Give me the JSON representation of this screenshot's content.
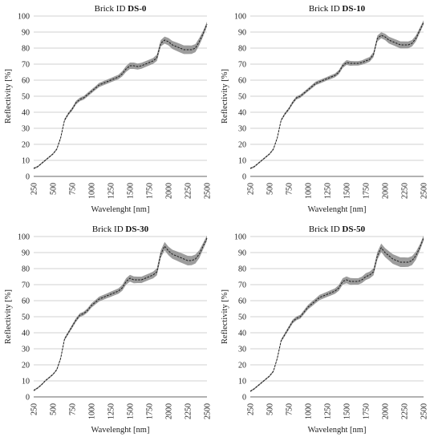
{
  "chart_data": [
    {
      "type": "line",
      "title": "Brick ID DS-0",
      "title_prefix": "Brick ID ",
      "title_id": "DS-0",
      "xlabel": "Wavelenght [nm]",
      "ylabel": "Reflectivity [%]",
      "xlim": [
        250,
        2500
      ],
      "ylim": [
        0,
        100
      ],
      "xticks": [
        "250",
        "500",
        "750",
        "1000",
        "1250",
        "1500",
        "1750",
        "2000",
        "2250",
        "2500"
      ],
      "yticks": [
        "0",
        "10",
        "20",
        "30",
        "40",
        "50",
        "60",
        "70",
        "80",
        "90",
        "100"
      ],
      "grid": "horizontal",
      "colors": {
        "line": "#1a1a1a",
        "band": "#8c8c8c"
      },
      "x": [
        250,
        300,
        350,
        400,
        450,
        500,
        550,
        600,
        650,
        700,
        750,
        800,
        850,
        900,
        950,
        1000,
        1050,
        1100,
        1150,
        1200,
        1250,
        1300,
        1350,
        1400,
        1450,
        1500,
        1550,
        1600,
        1650,
        1700,
        1750,
        1800,
        1850,
        1900,
        1950,
        2000,
        2050,
        2100,
        2150,
        2200,
        2250,
        2300,
        2350,
        2400,
        2450,
        2500
      ],
      "series": [
        {
          "values": [
            5,
            6,
            8,
            10,
            12,
            14,
            17,
            24,
            35,
            39,
            42,
            46,
            48,
            49,
            51,
            53,
            55,
            57,
            58,
            59,
            60,
            61,
            62,
            64,
            67,
            69,
            69,
            68.5,
            69,
            70,
            71,
            72,
            74,
            83,
            85,
            84,
            82,
            81,
            80,
            79,
            79,
            79,
            80,
            84,
            89,
            95
          ]
        }
      ],
      "band_halfwidth": [
        0.5,
        0.5,
        0.5,
        0.5,
        0.5,
        0.5,
        0.6,
        0.8,
        0.8,
        0.9,
        1.0,
        1.1,
        1.1,
        1.1,
        1.2,
        1.2,
        1.2,
        1.3,
        1.3,
        1.3,
        1.3,
        1.4,
        1.4,
        1.6,
        1.8,
        2.0,
        2.0,
        1.9,
        1.9,
        1.8,
        1.8,
        1.8,
        2.0,
        2.0,
        2.2,
        2.3,
        2.5,
        2.6,
        2.7,
        2.7,
        2.7,
        2.6,
        2.5,
        2.3,
        1.8,
        1.5
      ]
    },
    {
      "type": "line",
      "title": "Brick ID DS-10",
      "title_prefix": "Brick ID ",
      "title_id": "DS-10",
      "xlabel": "Wavelenght [nm]",
      "ylabel": "Reflectivity [%]",
      "xlim": [
        250,
        2500
      ],
      "ylim": [
        0,
        100
      ],
      "xticks": [
        "250",
        "500",
        "750",
        "1000",
        "1250",
        "1500",
        "1750",
        "2000",
        "2250",
        "2500"
      ],
      "yticks": [
        "0",
        "10",
        "20",
        "30",
        "40",
        "50",
        "60",
        "70",
        "80",
        "90",
        "100"
      ],
      "grid": "horizontal",
      "colors": {
        "line": "#1a1a1a",
        "band": "#8c8c8c"
      },
      "x": [
        250,
        300,
        350,
        400,
        450,
        500,
        550,
        600,
        650,
        700,
        750,
        800,
        850,
        900,
        950,
        1000,
        1050,
        1100,
        1150,
        1200,
        1250,
        1300,
        1350,
        1400,
        1450,
        1500,
        1550,
        1600,
        1650,
        1700,
        1750,
        1800,
        1850,
        1900,
        1950,
        2000,
        2050,
        2100,
        2150,
        2200,
        2250,
        2300,
        2350,
        2400,
        2450,
        2500
      ],
      "series": [
        {
          "values": [
            5,
            6,
            8,
            10,
            12,
            14,
            17,
            24,
            35,
            39,
            42,
            46,
            49,
            50,
            52,
            54,
            56,
            58,
            59,
            60,
            61,
            62,
            63,
            65,
            69,
            71,
            70.5,
            70.5,
            70.5,
            71,
            72,
            73,
            76,
            86,
            88,
            87,
            85,
            84,
            83,
            82,
            82,
            82,
            83,
            86,
            91,
            96
          ]
        }
      ],
      "band_halfwidth": [
        0.5,
        0.5,
        0.5,
        0.5,
        0.5,
        0.5,
        0.6,
        0.7,
        0.7,
        0.8,
        0.9,
        1.0,
        1.0,
        1.0,
        1.0,
        1.0,
        1.1,
        1.1,
        1.1,
        1.1,
        1.1,
        1.2,
        1.2,
        1.3,
        1.4,
        1.5,
        1.5,
        1.4,
        1.4,
        1.4,
        1.5,
        1.5,
        1.6,
        1.8,
        1.9,
        2.0,
        2.1,
        2.1,
        2.2,
        2.2,
        2.2,
        2.1,
        2.0,
        1.9,
        1.6,
        1.4
      ]
    },
    {
      "type": "line",
      "title": "Brick ID DS-30",
      "title_prefix": "Brick ID ",
      "title_id": "DS-30",
      "xlabel": "Wavelenght [nm]",
      "ylabel": "Reflectivity [%]",
      "xlim": [
        250,
        2500
      ],
      "ylim": [
        0,
        100
      ],
      "xticks": [
        "250",
        "500",
        "750",
        "1000",
        "1250",
        "1500",
        "1750",
        "2000",
        "2250",
        "2500"
      ],
      "yticks": [
        "0",
        "10",
        "20",
        "30",
        "40",
        "50",
        "60",
        "70",
        "80",
        "90",
        "100"
      ],
      "grid": "horizontal",
      "colors": {
        "line": "#1a1a1a",
        "band": "#8c8c8c"
      },
      "x": [
        250,
        300,
        350,
        400,
        450,
        500,
        550,
        600,
        650,
        700,
        750,
        800,
        850,
        900,
        950,
        1000,
        1050,
        1100,
        1150,
        1200,
        1250,
        1300,
        1350,
        1400,
        1450,
        1500,
        1550,
        1600,
        1650,
        1700,
        1750,
        1800,
        1850,
        1900,
        1950,
        2000,
        2050,
        2100,
        2150,
        2200,
        2250,
        2300,
        2350,
        2400,
        2450,
        2500
      ],
      "series": [
        {
          "values": [
            4,
            5.5,
            7.5,
            10,
            12,
            14,
            17,
            24,
            36,
            40,
            44,
            48,
            51,
            52,
            54,
            57,
            59,
            61,
            62,
            63,
            64,
            65,
            66,
            68,
            72,
            74,
            73,
            73,
            73,
            74,
            75,
            76,
            78,
            89,
            94,
            91,
            89,
            88,
            87,
            86,
            85,
            85,
            86,
            89,
            94,
            99
          ]
        }
      ],
      "band_halfwidth": [
        0.5,
        0.5,
        0.5,
        0.5,
        0.5,
        0.5,
        0.6,
        0.8,
        0.9,
        1.0,
        1.1,
        1.2,
        1.2,
        1.2,
        1.3,
        1.4,
        1.4,
        1.5,
        1.5,
        1.5,
        1.6,
        1.6,
        1.7,
        1.8,
        2.0,
        2.1,
        2.1,
        2.0,
        2.0,
        2.0,
        2.0,
        2.1,
        2.2,
        2.4,
        2.6,
        2.7,
        2.8,
        2.9,
        3.0,
        3.0,
        3.0,
        2.9,
        2.8,
        2.5,
        2.0,
        1.6
      ]
    },
    {
      "type": "line",
      "title": "Brick ID DS-50",
      "title_prefix": "Brick ID ",
      "title_id": "DS-50",
      "xlabel": "Wavelenght [nm]",
      "ylabel": "Reflectivity [%]",
      "xlim": [
        250,
        2500
      ],
      "ylim": [
        0,
        100
      ],
      "xticks": [
        "250",
        "500",
        "750",
        "1000",
        "1250",
        "1500",
        "1750",
        "2000",
        "2250",
        "2500"
      ],
      "yticks": [
        "0",
        "10",
        "20",
        "30",
        "40",
        "50",
        "60",
        "70",
        "80",
        "90",
        "100"
      ],
      "grid": "horizontal",
      "colors": {
        "line": "#1a1a1a",
        "band": "#8c8c8c"
      },
      "x": [
        250,
        300,
        350,
        400,
        450,
        500,
        550,
        600,
        650,
        700,
        750,
        800,
        850,
        900,
        950,
        1000,
        1050,
        1100,
        1150,
        1200,
        1250,
        1300,
        1350,
        1400,
        1450,
        1500,
        1550,
        1600,
        1650,
        1700,
        1750,
        1800,
        1850,
        1900,
        1950,
        2000,
        2050,
        2100,
        2150,
        2200,
        2250,
        2300,
        2350,
        2400,
        2450,
        2500
      ],
      "series": [
        {
          "values": [
            3.5,
            5,
            7,
            9,
            11,
            13,
            16,
            24,
            35,
            39,
            43,
            47,
            49,
            50,
            53,
            56,
            58,
            60,
            62,
            63,
            64,
            65,
            66,
            68,
            72,
            73,
            72,
            72,
            72,
            73,
            75,
            76,
            78,
            88,
            93,
            90,
            88,
            86,
            85,
            84,
            84,
            84,
            85,
            88,
            93,
            99
          ]
        }
      ],
      "band_halfwidth": [
        0.5,
        0.5,
        0.5,
        0.5,
        0.5,
        0.5,
        0.6,
        0.8,
        0.9,
        1.0,
        1.1,
        1.2,
        1.2,
        1.2,
        1.3,
        1.4,
        1.5,
        1.5,
        1.6,
        1.6,
        1.6,
        1.7,
        1.7,
        1.8,
        2.0,
        2.1,
        2.1,
        2.0,
        2.0,
        2.0,
        2.1,
        2.1,
        2.2,
        2.4,
        2.6,
        2.8,
        2.9,
        3.0,
        3.0,
        3.0,
        3.0,
        2.9,
        2.8,
        2.5,
        2.0,
        1.6
      ]
    }
  ]
}
